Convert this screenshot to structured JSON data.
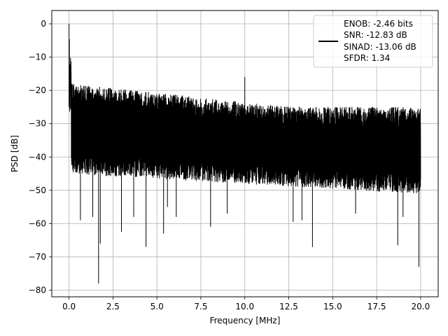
{
  "chart_data": {
    "type": "line",
    "xlabel": "Frequency [MHz]",
    "ylabel": "PSD [dB]",
    "xlim": [
      -0.98,
      21.0
    ],
    "ylim": [
      -82,
      4
    ],
    "xticks": [
      0.0,
      2.5,
      5.0,
      7.5,
      10.0,
      12.5,
      15.0,
      17.5,
      20.0
    ],
    "xtick_labels": [
      "0.0",
      "2.5",
      "5.0",
      "7.5",
      "10.0",
      "12.5",
      "15.0",
      "17.5",
      "20.0"
    ],
    "yticks": [
      0,
      -10,
      -20,
      -30,
      -40,
      -50,
      -60,
      -70,
      -80
    ],
    "ytick_labels": [
      "0",
      "−10",
      "−20",
      "−30",
      "−40",
      "−50",
      "−60",
      "−70",
      "−80"
    ],
    "grid": true,
    "legend_placement": "top-right",
    "legend_lines": [
      "ENOB: -2.46 bits",
      "SNR: -12.83 dB",
      "SINAD: -13.06 dB",
      "SFDR: 1.34"
    ],
    "series": [
      {
        "color": "#000000",
        "freq_range": [
          0.0,
          20.0
        ],
        "peak": {
          "x": 0.0,
          "y": 0.0
        },
        "spur": {
          "x": 10.0,
          "y": -16
        },
        "upper_envelope_start": -18,
        "upper_envelope_end": -25,
        "lower_envelope_start": -42,
        "lower_envelope_end": -48,
        "dips": [
          {
            "x": 0.65,
            "y": -59
          },
          {
            "x": 1.35,
            "y": -58
          },
          {
            "x": 1.68,
            "y": -78
          },
          {
            "x": 1.78,
            "y": -66
          },
          {
            "x": 2.98,
            "y": -62.5
          },
          {
            "x": 3.68,
            "y": -58
          },
          {
            "x": 4.38,
            "y": -67
          },
          {
            "x": 5.38,
            "y": -63
          },
          {
            "x": 5.6,
            "y": -55
          },
          {
            "x": 6.1,
            "y": -58
          },
          {
            "x": 8.05,
            "y": -61
          },
          {
            "x": 9.0,
            "y": -57
          },
          {
            "x": 12.75,
            "y": -59.5
          },
          {
            "x": 13.25,
            "y": -59
          },
          {
            "x": 13.85,
            "y": -67
          },
          {
            "x": 16.3,
            "y": -57
          },
          {
            "x": 18.7,
            "y": -66.5
          },
          {
            "x": 19.0,
            "y": -58
          },
          {
            "x": 19.9,
            "y": -73
          }
        ]
      }
    ]
  }
}
